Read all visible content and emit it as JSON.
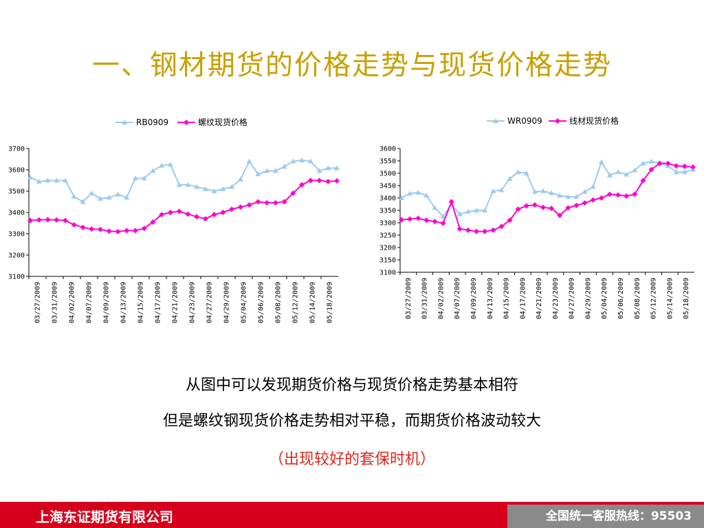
{
  "slide": {
    "title": "一、钢材期货的价格走势与现货价格走势",
    "caption_line1": "从图中可以发现期货价格与现货价格走势基本相符",
    "caption_line2": "但是螺纹钢现货价格走势相对平稳，而期货价格波动较大",
    "caption_line3": "（出现较好的套保时机）",
    "footer_company": "上海东证期货有限公司",
    "footer_hotline": "全国统一客服热线：95503"
  },
  "colors": {
    "title": "#c8a000",
    "futures_series": "#9ccaf0",
    "spot_series": "#ff00cc",
    "footer_red": "#d7001c",
    "footer_gray": "#8a8a8a",
    "highlight": "#e0251b"
  },
  "chart_data": [
    {
      "type": "line",
      "legend_position": "top-center",
      "grid": false,
      "ylim": [
        3100,
        3700
      ],
      "yticks": [
        3100,
        3200,
        3300,
        3400,
        3500,
        3600,
        3700
      ],
      "x_tick_labels": [
        "03/27/2009",
        "03/31/2009",
        "04/02/2009",
        "04/07/2009",
        "04/09/2009",
        "04/13/2009",
        "04/15/2009",
        "04/17/2009",
        "04/21/2009",
        "04/23/2009",
        "04/27/2009",
        "04/29/2009",
        "05/04/2009",
        "05/06/2009",
        "05/08/2009",
        "05/12/2009",
        "05/14/2009",
        "05/18/2009"
      ],
      "series": [
        {
          "name": "RB0909",
          "color": "#9ccaf0",
          "marker": "triangle",
          "values": [
            3565,
            3545,
            3550,
            3550,
            3550,
            3475,
            3450,
            3490,
            3465,
            3470,
            3485,
            3470,
            3560,
            3560,
            3595,
            3620,
            3625,
            3530,
            3530,
            3520,
            3510,
            3500,
            3510,
            3520,
            3555,
            3640,
            3580,
            3595,
            3595,
            3615,
            3640,
            3645,
            3640,
            3595,
            3608,
            3608
          ]
        },
        {
          "name": "螺纹现货价格",
          "color": "#ff00cc",
          "marker": "diamond",
          "values": [
            3362,
            3365,
            3366,
            3365,
            3362,
            3342,
            3330,
            3322,
            3320,
            3312,
            3310,
            3315,
            3315,
            3325,
            3355,
            3390,
            3400,
            3405,
            3392,
            3380,
            3370,
            3390,
            3400,
            3415,
            3425,
            3435,
            3450,
            3445,
            3445,
            3450,
            3490,
            3530,
            3550,
            3550,
            3545,
            3548
          ]
        }
      ]
    },
    {
      "type": "line",
      "legend_position": "top-center",
      "grid": false,
      "ylim": [
        3100,
        3600
      ],
      "yticks": [
        3100,
        3150,
        3200,
        3250,
        3300,
        3350,
        3400,
        3450,
        3500,
        3550,
        3600
      ],
      "x_tick_labels": [
        "03/27/2009",
        "03/31/2009",
        "04/02/2009",
        "04/07/2009",
        "04/09/2009",
        "04/13/2009",
        "04/15/2009",
        "04/17/2009",
        "04/21/2009",
        "04/23/2009",
        "04/27/2009",
        "04/29/2009",
        "05/04/2009",
        "05/06/2009",
        "05/08/2009",
        "05/12/2009",
        "05/14/2009",
        "05/18/2009"
      ],
      "series": [
        {
          "name": "WR0909",
          "color": "#9ccaf0",
          "marker": "triangle",
          "values": [
            3400,
            3418,
            3422,
            3410,
            3360,
            3325,
            3375,
            3335,
            3345,
            3350,
            3350,
            3428,
            3432,
            3478,
            3505,
            3500,
            3425,
            3428,
            3420,
            3410,
            3405,
            3405,
            3425,
            3445,
            3545,
            3492,
            3505,
            3495,
            3512,
            3540,
            3548,
            3540,
            3530,
            3505,
            3505,
            3515
          ]
        },
        {
          "name": "线材现货价格",
          "color": "#ff00cc",
          "marker": "diamond",
          "values": [
            3312,
            3315,
            3318,
            3310,
            3305,
            3298,
            3385,
            3275,
            3270,
            3265,
            3265,
            3270,
            3285,
            3310,
            3355,
            3368,
            3372,
            3362,
            3358,
            3330,
            3360,
            3370,
            3380,
            3392,
            3400,
            3415,
            3412,
            3408,
            3415,
            3470,
            3515,
            3540,
            3540,
            3530,
            3528,
            3525
          ]
        }
      ]
    }
  ]
}
